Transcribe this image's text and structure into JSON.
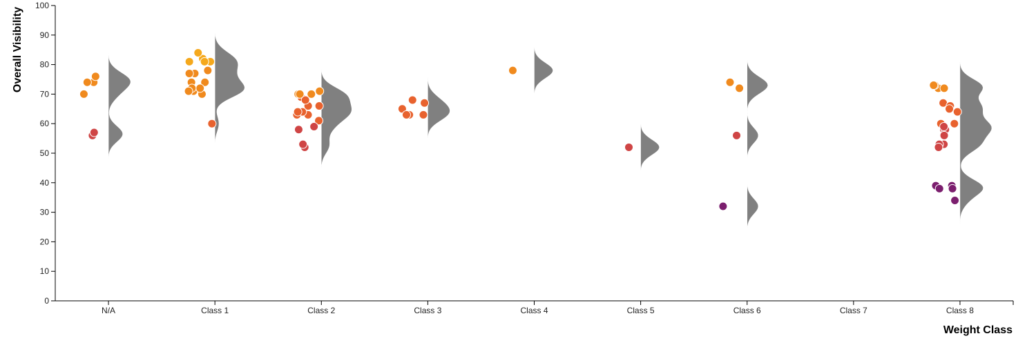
{
  "chart_data": {
    "type": "scatter",
    "subtype": "raincloud (jittered points + half-violin density)",
    "title": "",
    "xlabel": "Weight Class",
    "ylabel": "Overall Visibility",
    "ylim": [
      0,
      100
    ],
    "yticks": [
      0,
      10,
      20,
      30,
      40,
      50,
      60,
      70,
      80,
      90,
      100
    ],
    "categories": [
      "N/A",
      "Class 1",
      "Class 2",
      "Class 3",
      "Class 4",
      "Class 5",
      "Class 6",
      "Class 7",
      "Class 8"
    ],
    "grid": false,
    "color_scale": "value-based: yellow-orange (high) to red to purple (low)",
    "colors": {
      "gt80": "#f5a81c",
      "70to80": "#f08a1e",
      "60to70": "#e8622e",
      "50to60": "#cf4545",
      "lt40": "#7b1e6e",
      "violin": "#808080"
    },
    "points": {
      "N/A": [
        74,
        76,
        70,
        74,
        56,
        57
      ],
      "Class 1": [
        81,
        81,
        82,
        84,
        77,
        78,
        81,
        77,
        71,
        71,
        74,
        74,
        70,
        72,
        72,
        71,
        60
      ],
      "Class 2": [
        66,
        63,
        64,
        61,
        58,
        52,
        66,
        70,
        69,
        70,
        71,
        68,
        70,
        63,
        64,
        64,
        59,
        53
      ],
      "Class 3": [
        63,
        65,
        67,
        63,
        63,
        68
      ],
      "Class 4": [
        78
      ],
      "Class 5": [
        52
      ],
      "Class 6": [
        74,
        72,
        56,
        32
      ],
      "Class 7": [],
      "Class 8": [
        72,
        72,
        73,
        73,
        67,
        66,
        65,
        64,
        60,
        58,
        58,
        59,
        60,
        56,
        53,
        53,
        52,
        39,
        39,
        38,
        38,
        34
      ]
    }
  }
}
